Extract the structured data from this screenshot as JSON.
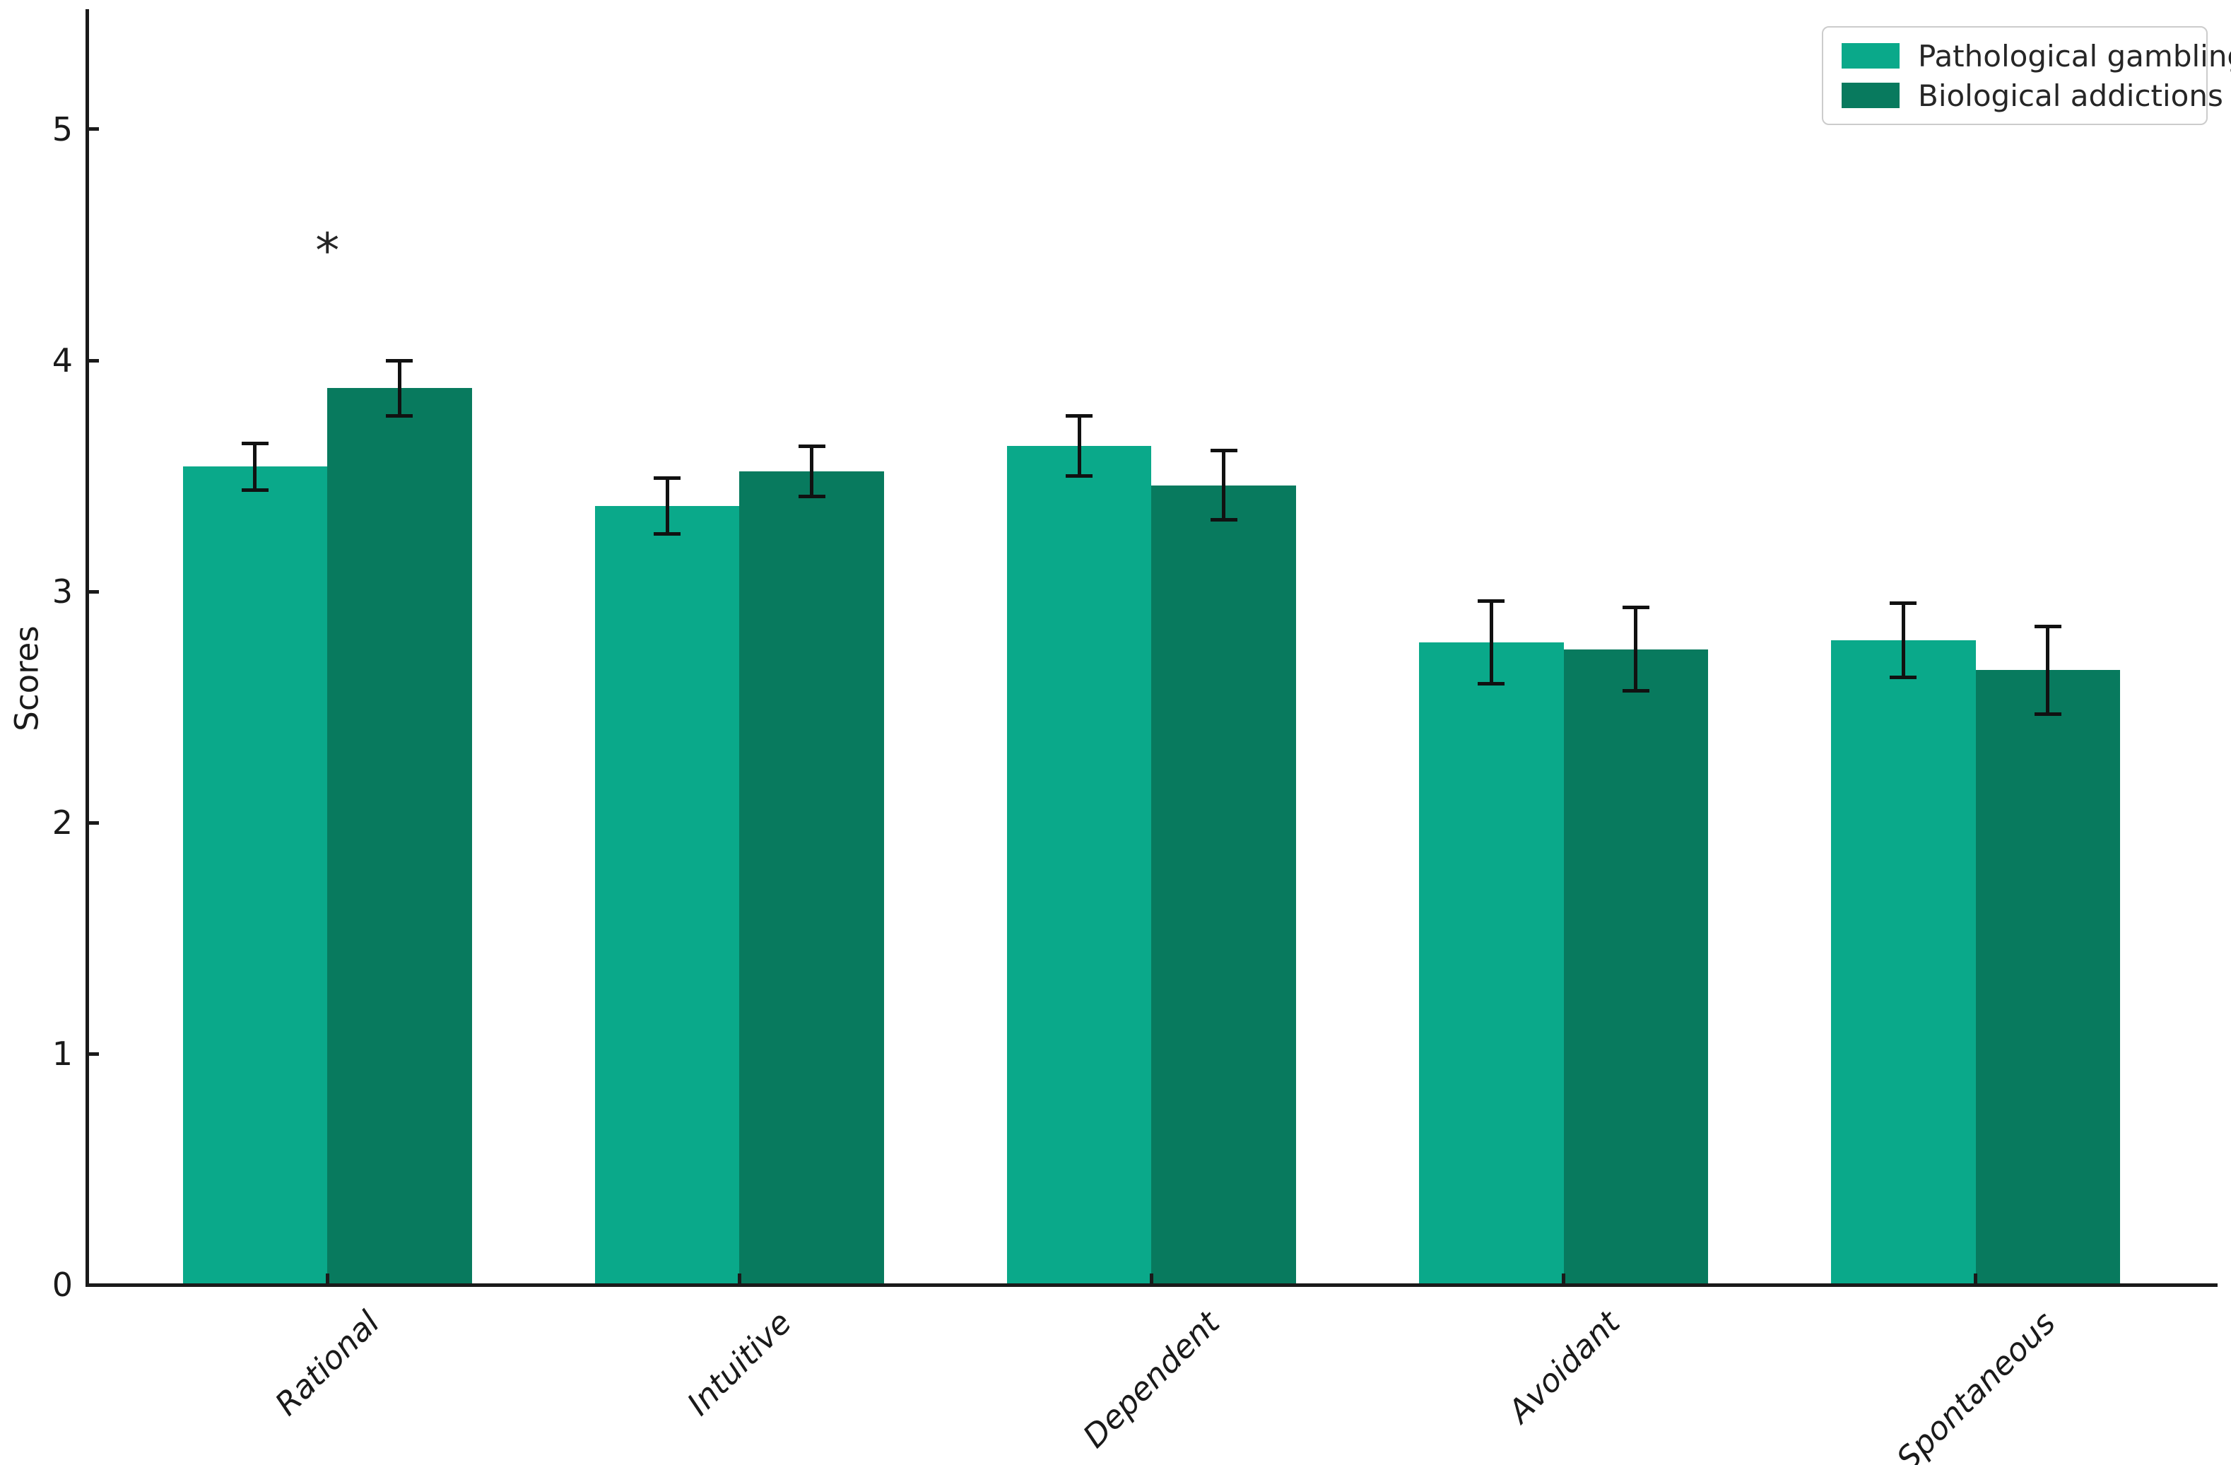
{
  "figure": {
    "ylabel": "Scores",
    "yticks_labels": [
      "0",
      "1",
      "2",
      "3",
      "4",
      "5"
    ]
  },
  "legend": {
    "items": [
      {
        "label": "Pathological gambling",
        "color": "#0aa98a"
      },
      {
        "label": "Biological addictions",
        "color": "#087a5e"
      }
    ]
  },
  "chart_data": {
    "type": "bar",
    "title": "",
    "xlabel": "",
    "ylabel": "Scores",
    "categories": [
      "Rational",
      "Intuitive",
      "Dependent",
      "Avoidant",
      "Spontaneous"
    ],
    "series": [
      {
        "name": "Pathological gambling",
        "color": "#0aa98a",
        "values": [
          3.54,
          3.37,
          3.63,
          2.78,
          2.79
        ],
        "errors": [
          0.1,
          0.12,
          0.13,
          0.18,
          0.16
        ]
      },
      {
        "name": "Biological addictions",
        "color": "#087a5e",
        "values": [
          3.88,
          3.52,
          3.46,
          2.75,
          2.66
        ],
        "errors": [
          0.12,
          0.11,
          0.15,
          0.18,
          0.19
        ]
      }
    ],
    "error_bars": true,
    "ylim": [
      0,
      5.52
    ],
    "yticks": [
      0,
      1,
      2,
      3,
      4,
      5
    ],
    "grid": false,
    "legend_position": "upper right",
    "annotations": [
      {
        "text": "*",
        "category": "Rational",
        "category_index": 0,
        "value": 4.47
      }
    ],
    "style": {
      "axis_color": "#1a1a1a",
      "text_color": "#1a1a1a",
      "error_color": "#111111",
      "legend_border_color": "#cccccc"
    }
  }
}
